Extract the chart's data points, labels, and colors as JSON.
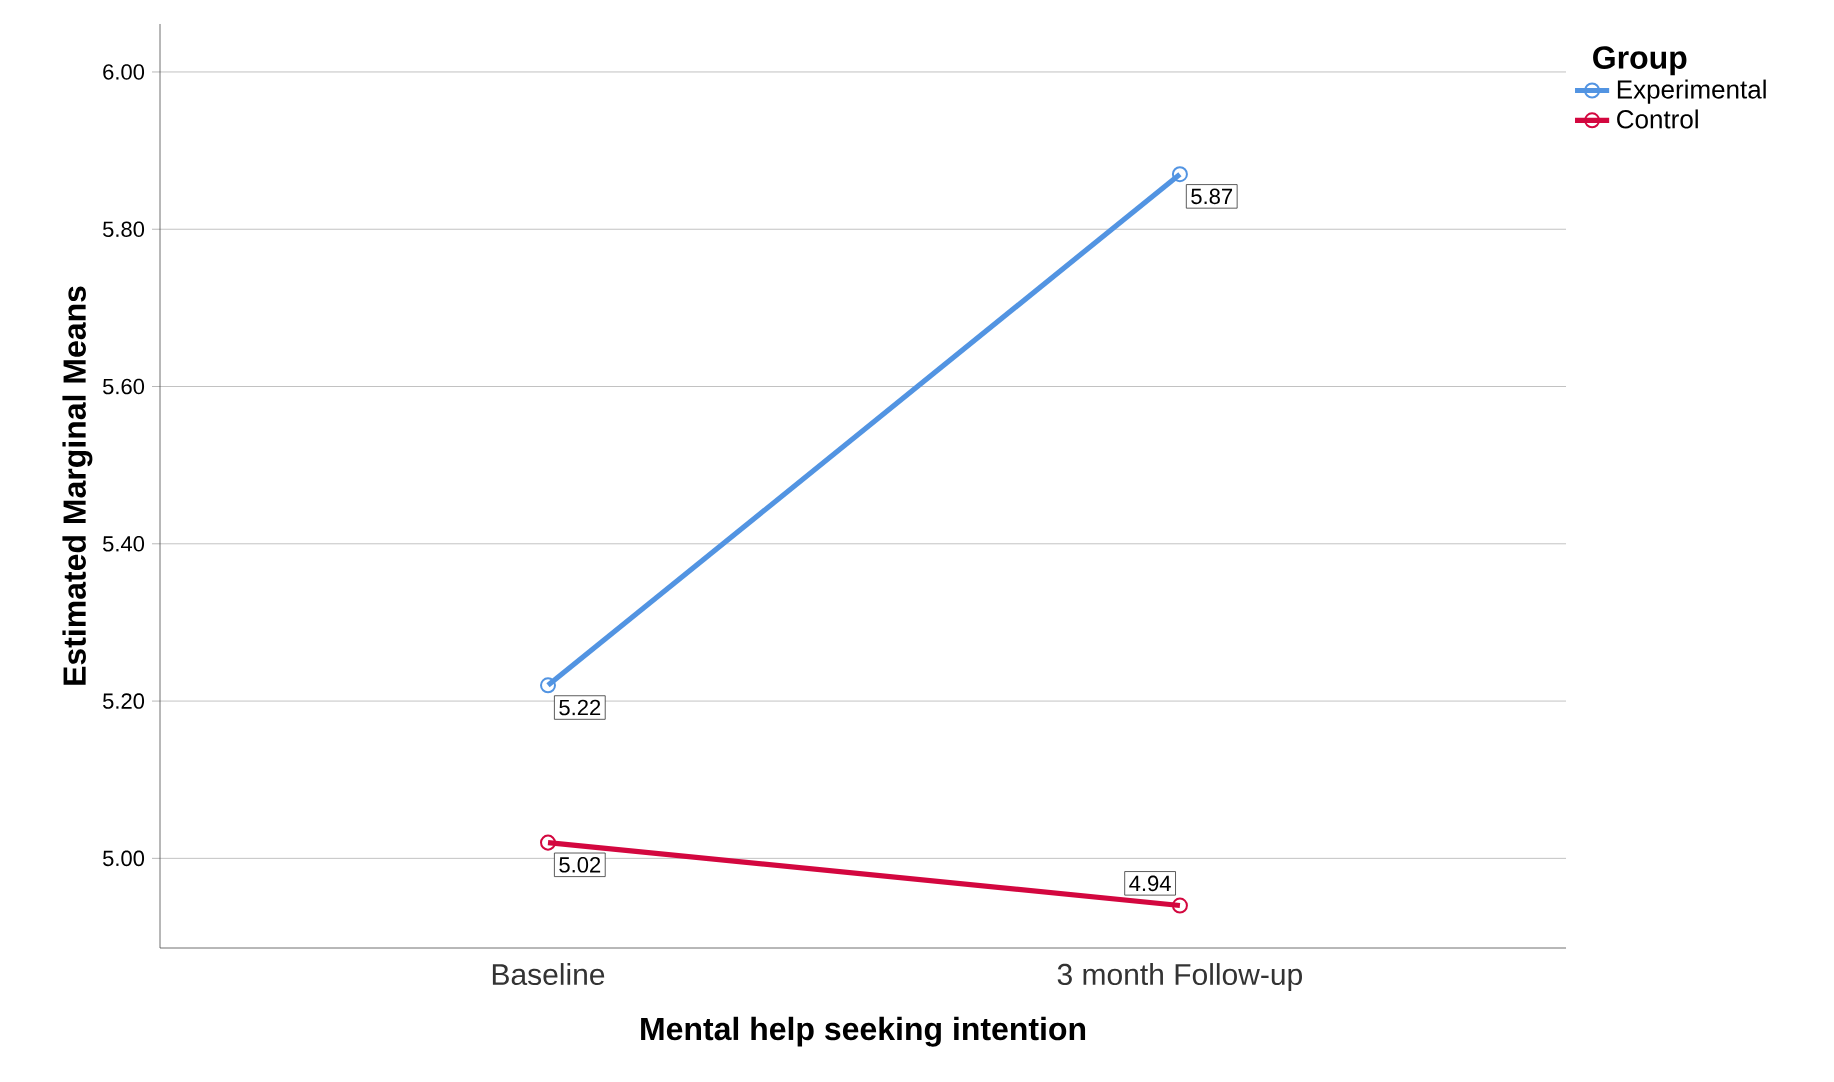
{
  "chart_data": {
    "type": "line",
    "xlabel": "Mental help seeking intention",
    "ylabel": "Estimated Marginal Means",
    "legend_title": "Group",
    "categories": [
      "Baseline",
      "3 month Follow-up"
    ],
    "series": [
      {
        "name": "Experimental",
        "color": "#5294e2",
        "values": [
          5.22,
          5.87
        ]
      },
      {
        "name": "Control",
        "color": "#d3073f",
        "values": [
          5.02,
          4.94
        ]
      }
    ],
    "ylim": [
      4.886,
      6.061
    ],
    "yticks": [
      {
        "value": 5.0,
        "label": "5.00"
      },
      {
        "value": 5.2,
        "label": "5.20"
      },
      {
        "value": 5.4,
        "label": "5.40"
      },
      {
        "value": 5.6,
        "label": "5.60"
      },
      {
        "value": 5.8,
        "label": "5.80"
      },
      {
        "value": 6.0,
        "label": "6.00"
      }
    ],
    "grid": "y",
    "legend": "top right",
    "marker": "circle",
    "line_style": "solid",
    "data_labels": true
  }
}
